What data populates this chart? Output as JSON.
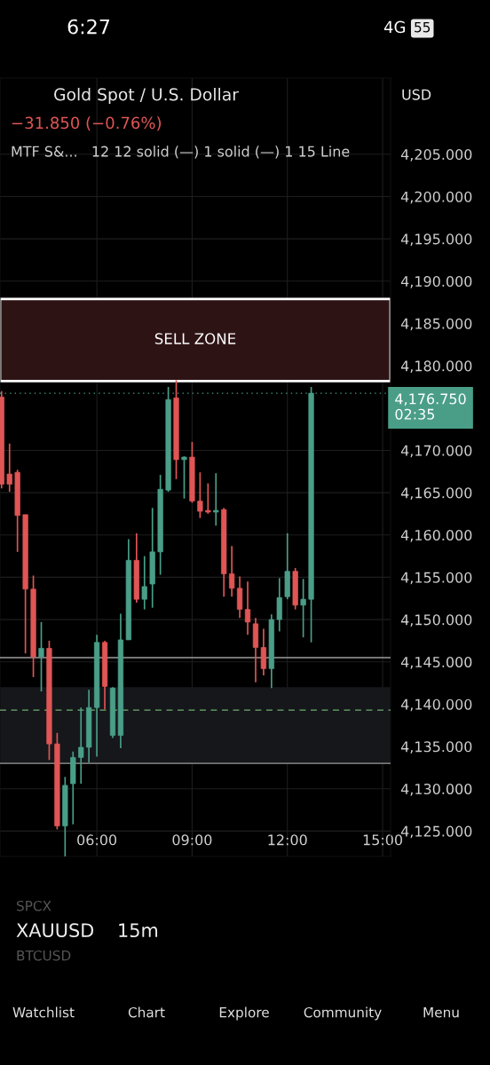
{
  "chart_data": {
    "type": "candlestick",
    "title": "Gold Spot / U.S. Dollar",
    "subtitle": "−31.850 (−0.76%)",
    "annotations": [
      "MTF S&...   12 12 solid (—) 1 solid (—) 1 15 Line",
      "USD",
      "6:27",
      "4G",
      "55",
      "SPCX",
      "XAUUSD",
      "15m",
      "BTCUSD",
      "Watchlist",
      "Chart",
      "Explore",
      "Community",
      "Menu",
      "02:35"
    ],
    "x": [
      3.0,
      3.25,
      3.5,
      3.75,
      4.0,
      4.25,
      4.5,
      4.75,
      5.0,
      5.25,
      5.5,
      5.75,
      6.0,
      6.25,
      6.5,
      6.75,
      7.0,
      7.25,
      7.5,
      7.75,
      8.0,
      8.25,
      8.5,
      8.75,
      9.0,
      9.25,
      9.5,
      9.75,
      10.0,
      10.25,
      10.5,
      10.75,
      11.0,
      11.25,
      11.5,
      11.75,
      12.0,
      12.25,
      12.5,
      12.75
    ],
    "ohlc": [
      [
        4176.3,
        4177.0,
        4165.5,
        4166.0
      ],
      [
        4167.2,
        4170.8,
        4165.1,
        4166.0
      ],
      [
        4167.4,
        4167.7,
        4158.0,
        4162.3
      ],
      [
        4162.4,
        4162.4,
        4146.0,
        4153.6
      ],
      [
        4153.6,
        4155.2,
        4143.2,
        4145.6
      ],
      [
        4145.6,
        4149.7,
        4141.5,
        4146.6
      ],
      [
        4146.6,
        4147.5,
        4133.4,
        4135.3
      ],
      [
        4135.3,
        4136.6,
        4125.2,
        4125.6
      ],
      [
        4125.6,
        4131.4,
        4122.0,
        4130.4
      ],
      [
        4130.6,
        4134.4,
        4125.8,
        4133.7
      ],
      [
        4133.7,
        4139.6,
        4130.6,
        4134.9
      ],
      [
        4134.9,
        4141.7,
        4133.1,
        4139.6
      ],
      [
        4139.6,
        4148.2,
        4133.8,
        4147.3
      ],
      [
        4147.3,
        4147.5,
        4139.4,
        4142.1
      ],
      [
        4136.3,
        4142.0,
        4136.0,
        4141.9
      ],
      [
        4136.3,
        4150.7,
        4134.8,
        4147.6
      ],
      [
        4147.6,
        4159.5,
        4147.6,
        4157.0
      ],
      [
        4157.0,
        4160.2,
        4152.0,
        4152.4
      ],
      [
        4152.4,
        4157.5,
        4151.2,
        4153.9
      ],
      [
        4154.2,
        4163.2,
        4151.4,
        4158.0
      ],
      [
        4158.0,
        4167.1,
        4155.3,
        4165.4
      ],
      [
        4165.3,
        4177.5,
        4165.1,
        4176.0
      ],
      [
        4176.2,
        4178.3,
        4166.6,
        4168.9
      ],
      [
        4168.9,
        4169.3,
        4164.3,
        4169.2
      ],
      [
        4169.2,
        4171.0,
        4163.8,
        4164.0
      ],
      [
        4164.0,
        4167.4,
        4162.0,
        4162.8
      ],
      [
        4162.9,
        4166.1,
        4162.5,
        4162.7
      ],
      [
        4162.7,
        4167.3,
        4161.1,
        4162.9
      ],
      [
        4163.0,
        4163.2,
        4152.7,
        4155.4
      ],
      [
        4155.4,
        4158.7,
        4152.7,
        4153.7
      ],
      [
        4153.7,
        4155.1,
        4150.2,
        4151.2
      ],
      [
        4151.2,
        4154.5,
        4148.2,
        4149.7
      ],
      [
        4149.5,
        4150.2,
        4142.6,
        4146.7
      ],
      [
        4146.7,
        4148.9,
        4143.4,
        4144.2
      ],
      [
        4144.2,
        4150.6,
        4141.9,
        4150.0
      ],
      [
        4150.0,
        4154.9,
        4148.6,
        4152.6
      ],
      [
        4152.7,
        4160.2,
        4152.4,
        4155.7
      ],
      [
        4155.7,
        4156.1,
        4151.2,
        4151.7
      ],
      [
        4151.7,
        4154.8,
        4147.9,
        4152.4
      ],
      [
        4152.4,
        4177.5,
        4147.3,
        4176.75
      ]
    ],
    "colors": [
      "#e05555",
      "#e05555",
      "#e05555",
      "#e05555",
      "#e05555",
      "#4a9e88",
      "#e05555",
      "#e05555",
      "#4a9e88",
      "#4a9e88",
      "#4a9e88",
      "#4a9e88",
      "#4a9e88",
      "#e05555",
      "#4a9e88",
      "#4a9e88",
      "#4a9e88",
      "#e05555",
      "#4a9e88",
      "#4a9e88",
      "#4a9e88",
      "#4a9e88",
      "#e05555",
      "#4a9e88",
      "#e05555",
      "#e05555",
      "#e05555",
      "#4a9e88",
      "#e05555",
      "#e05555",
      "#e05555",
      "#e05555",
      "#e05555",
      "#e05555",
      "#4a9e88",
      "#4a9e88",
      "#4a9e88",
      "#e05555",
      "#4a9e88",
      "#4a9e88"
    ],
    "xlim": [
      2.95,
      15.25
    ],
    "xticks": [
      {
        "value": 6,
        "label": "06:00"
      },
      {
        "value": 9,
        "label": "09:00"
      },
      {
        "value": 12,
        "label": "12:00"
      },
      {
        "value": 15,
        "label": "15:00"
      }
    ],
    "ylim": [
      4122,
      4214
    ],
    "yticks": [
      {
        "value": 4125,
        "label": "4,125.000"
      },
      {
        "value": 4130,
        "label": "4,130.000"
      },
      {
        "value": 4135,
        "label": "4,135.000"
      },
      {
        "value": 4140,
        "label": "4,140.000"
      },
      {
        "value": 4145,
        "label": "4,145.000"
      },
      {
        "value": 4150,
        "label": "4,150.000"
      },
      {
        "value": 4155,
        "label": "4,155.000"
      },
      {
        "value": 4160,
        "label": "4,160.000"
      },
      {
        "value": 4165,
        "label": "4,165.000"
      },
      {
        "value": 4170,
        "label": "4,170.000"
      },
      {
        "value": 4180,
        "label": "4,180.000"
      },
      {
        "value": 4185,
        "label": "4,185.000"
      },
      {
        "value": 4190,
        "label": "4,190.000"
      },
      {
        "value": 4195,
        "label": "4,195.000"
      },
      {
        "value": 4200,
        "label": "4,200.000"
      },
      {
        "value": 4205,
        "label": "4,205.000"
      }
    ],
    "grid": true,
    "ref_lines": [
      {
        "axis": "y",
        "value": 4176.75,
        "label": "4,176.750",
        "color": "#4a9e88",
        "line_style": "dotted"
      },
      {
        "axis": "y",
        "value": 4145.5,
        "color": "#9e9e9e",
        "line_style": "solid"
      },
      {
        "axis": "y",
        "value": 4139.3,
        "color": "#6fae6f",
        "line_style": "dashed"
      },
      {
        "axis": "y",
        "value": 4133.0,
        "color": "#9e9e9e",
        "line_style": "solid"
      }
    ],
    "bands": [
      {
        "axis": "y",
        "from": 4178.2,
        "to": 4187.9,
        "label": "SELL ZONE",
        "color": "#2e1315"
      },
      {
        "axis": "y",
        "from": 4133.0,
        "to": 4142.0,
        "color": "#15171b"
      }
    ]
  }
}
